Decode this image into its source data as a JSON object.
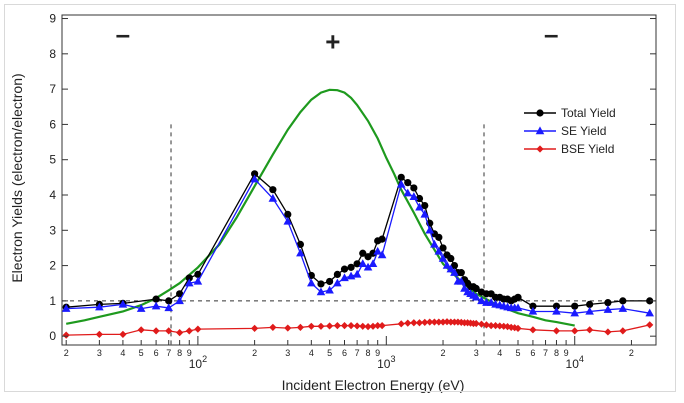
{
  "chart_data": {
    "type": "line",
    "xlabel": "Incident Electron Energy (eV)",
    "ylabel": "Electron Yields (electron/electron)",
    "x_scale": "log",
    "xlim": [
      19,
      27000
    ],
    "ylim": [
      -0.25,
      9.1
    ],
    "y_ticks": [
      0,
      1,
      2,
      3,
      4,
      5,
      6,
      7,
      8,
      9
    ],
    "x_major_ticks": [
      {
        "value": 100,
        "base": "10",
        "exp": "2"
      },
      {
        "value": 1000,
        "base": "10",
        "exp": "3"
      },
      {
        "value": 10000,
        "base": "10",
        "exp": "4"
      }
    ],
    "x_minor_ticks": [
      {
        "value": 20,
        "label": "2"
      },
      {
        "value": 30,
        "label": "3"
      },
      {
        "value": 40,
        "label": "4"
      },
      {
        "value": 50,
        "label": "5"
      },
      {
        "value": 60,
        "label": "6"
      },
      {
        "value": 70,
        "label": "7"
      },
      {
        "value": 80,
        "label": "8"
      },
      {
        "value": 90,
        "label": "9"
      },
      {
        "value": 200,
        "label": "2"
      },
      {
        "value": 300,
        "label": "3"
      },
      {
        "value": 400,
        "label": "4"
      },
      {
        "value": 500,
        "label": "5"
      },
      {
        "value": 600,
        "label": "6"
      },
      {
        "value": 700,
        "label": "7"
      },
      {
        "value": 800,
        "label": "8"
      },
      {
        "value": 900,
        "label": "9"
      },
      {
        "value": 2000,
        "label": "2"
      },
      {
        "value": 3000,
        "label": "3"
      },
      {
        "value": 4000,
        "label": "4"
      },
      {
        "value": 5000,
        "label": "5"
      },
      {
        "value": 6000,
        "label": "6"
      },
      {
        "value": 7000,
        "label": "7"
      },
      {
        "value": 8000,
        "label": "8"
      },
      {
        "value": 9000,
        "label": "9"
      },
      {
        "value": 20000,
        "label": "2"
      }
    ],
    "legend_position": "right",
    "reference_lines": {
      "horizontal_y": 1,
      "vertical_x": [
        72,
        3300
      ]
    },
    "region_labels": [
      {
        "text": "–",
        "x": 40,
        "y": 8.3
      },
      {
        "text": "+",
        "x": 520,
        "y": 8.1
      },
      {
        "text": "–",
        "x": 7500,
        "y": 8.3
      }
    ],
    "series": [
      {
        "name": "Total Yield",
        "color": "#000000",
        "marker": "circle",
        "x": [
          20,
          30,
          40,
          60,
          70,
          80,
          90,
          100,
          200,
          250,
          300,
          350,
          400,
          450,
          500,
          550,
          600,
          650,
          700,
          750,
          800,
          850,
          900,
          950,
          1200,
          1300,
          1400,
          1500,
          1600,
          1700,
          1800,
          1900,
          2000,
          2100,
          2200,
          2300,
          2400,
          2500,
          2600,
          2700,
          2800,
          2900,
          3000,
          3200,
          3400,
          3600,
          3800,
          4000,
          4200,
          4400,
          4600,
          4800,
          5000,
          6000,
          8000,
          10000,
          12000,
          15000,
          18000,
          25000
        ],
        "y": [
          0.82,
          0.9,
          0.93,
          1.05,
          1.0,
          1.2,
          1.65,
          1.75,
          4.6,
          4.15,
          3.45,
          2.6,
          1.72,
          1.48,
          1.55,
          1.75,
          1.9,
          1.95,
          2.05,
          2.35,
          2.25,
          2.35,
          2.7,
          2.75,
          4.5,
          4.35,
          4.2,
          3.9,
          3.7,
          3.2,
          2.9,
          2.8,
          2.5,
          2.3,
          2.2,
          2.0,
          1.8,
          1.8,
          1.6,
          1.5,
          1.4,
          1.4,
          1.35,
          1.25,
          1.2,
          1.2,
          1.1,
          1.1,
          1.05,
          1.05,
          1.0,
          1.05,
          1.1,
          0.85,
          0.85,
          0.85,
          0.9,
          0.95,
          1.0,
          1.0
        ]
      },
      {
        "name": "SE Yield",
        "color": "#1a1aff",
        "marker": "triangle",
        "x": [
          20,
          30,
          40,
          50,
          60,
          70,
          80,
          90,
          100,
          200,
          250,
          300,
          350,
          400,
          450,
          500,
          550,
          600,
          650,
          700,
          750,
          800,
          850,
          900,
          950,
          1200,
          1300,
          1400,
          1500,
          1600,
          1700,
          1800,
          1900,
          2000,
          2100,
          2200,
          2300,
          2400,
          2500,
          2600,
          2700,
          2800,
          2900,
          3000,
          3200,
          3400,
          3600,
          3800,
          4000,
          4200,
          4400,
          4600,
          4800,
          5000,
          6000,
          8000,
          10000,
          12000,
          15000,
          18000,
          25000
        ],
        "y": [
          0.78,
          0.82,
          0.9,
          0.78,
          0.85,
          0.8,
          1.0,
          1.5,
          1.55,
          4.45,
          3.9,
          3.25,
          2.35,
          1.5,
          1.25,
          1.3,
          1.5,
          1.65,
          1.7,
          1.75,
          2.05,
          1.95,
          2.05,
          2.4,
          2.3,
          4.3,
          4.05,
          3.95,
          3.65,
          3.45,
          3.0,
          2.6,
          2.4,
          2.2,
          2.0,
          1.9,
          1.8,
          1.55,
          1.55,
          1.35,
          1.25,
          1.2,
          1.15,
          1.1,
          1.0,
          0.95,
          0.95,
          0.9,
          0.88,
          0.85,
          0.82,
          0.8,
          0.8,
          0.8,
          0.7,
          0.7,
          0.65,
          0.7,
          0.75,
          0.78,
          0.65
        ]
      },
      {
        "name": "BSE Yield",
        "color": "#e01b1b",
        "marker": "diamond",
        "x": [
          20,
          30,
          40,
          50,
          60,
          70,
          80,
          90,
          100,
          200,
          250,
          300,
          350,
          400,
          450,
          500,
          550,
          600,
          650,
          700,
          750,
          800,
          850,
          900,
          950,
          1200,
          1300,
          1400,
          1500,
          1600,
          1700,
          1800,
          1900,
          2000,
          2100,
          2200,
          2300,
          2400,
          2500,
          2600,
          2700,
          2800,
          2900,
          3000,
          3200,
          3400,
          3600,
          3800,
          4000,
          4200,
          4400,
          4600,
          4800,
          5000,
          6000,
          8000,
          10000,
          12000,
          15000,
          18000,
          25000
        ],
        "y": [
          0.03,
          0.05,
          0.05,
          0.18,
          0.15,
          0.15,
          0.1,
          0.15,
          0.2,
          0.22,
          0.25,
          0.23,
          0.25,
          0.28,
          0.28,
          0.29,
          0.3,
          0.3,
          0.3,
          0.29,
          0.28,
          0.27,
          0.28,
          0.3,
          0.3,
          0.35,
          0.37,
          0.38,
          0.38,
          0.39,
          0.4,
          0.4,
          0.4,
          0.4,
          0.41,
          0.4,
          0.4,
          0.4,
          0.39,
          0.38,
          0.38,
          0.37,
          0.36,
          0.36,
          0.34,
          0.32,
          0.3,
          0.3,
          0.29,
          0.28,
          0.27,
          0.25,
          0.24,
          0.22,
          0.18,
          0.15,
          0.15,
          0.18,
          0.12,
          0.15,
          0.32
        ]
      },
      {
        "color": "#1e9a1e",
        "marker": "none",
        "x": [
          20,
          25,
          30,
          40,
          50,
          60,
          70,
          80,
          100,
          130,
          160,
          200,
          250,
          300,
          350,
          400,
          450,
          500,
          550,
          600,
          650,
          700,
          800,
          900,
          1000,
          1100,
          1200,
          1400,
          1600,
          1800,
          2000,
          2500,
          3000,
          4000,
          5000,
          6000,
          7000,
          8000,
          10000
        ],
        "y": [
          0.35,
          0.45,
          0.55,
          0.7,
          0.88,
          1.08,
          1.3,
          1.5,
          1.95,
          2.6,
          3.35,
          4.25,
          5.15,
          5.85,
          6.35,
          6.7,
          6.9,
          6.98,
          6.97,
          6.9,
          6.75,
          6.55,
          6.1,
          5.6,
          5.05,
          4.6,
          4.15,
          3.5,
          2.9,
          2.45,
          2.05,
          1.55,
          1.2,
          0.85,
          0.65,
          0.55,
          0.45,
          0.4,
          0.3
        ]
      }
    ]
  }
}
